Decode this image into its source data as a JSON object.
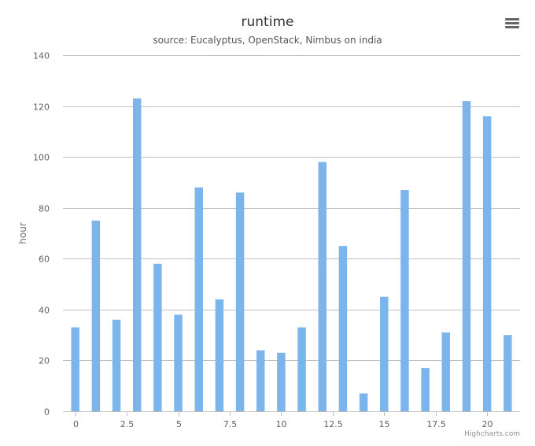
{
  "chart_data": {
    "type": "bar",
    "title": "runtime",
    "subtitle": "source: Eucalyptus, OpenStack, Nimbus on india",
    "xlabel": "",
    "ylabel": "hour",
    "x": [
      0,
      1,
      2,
      3,
      4,
      5,
      6,
      7,
      8,
      9,
      10,
      11,
      12,
      13,
      14,
      15,
      16,
      17,
      18,
      19,
      20,
      21
    ],
    "values": [
      33,
      75,
      36,
      123,
      58,
      38,
      88,
      44,
      86,
      24,
      23,
      33,
      98,
      65,
      7,
      45,
      87,
      17,
      31,
      122,
      116,
      30
    ],
    "xlim": [
      -0.6,
      21.6
    ],
    "ylim": [
      0,
      140
    ],
    "x_ticks": [
      "0",
      "2.5",
      "5",
      "7.5",
      "10",
      "12.5",
      "15",
      "17.5",
      "20"
    ],
    "x_tick_values": [
      0,
      2.5,
      5,
      7.5,
      10,
      12.5,
      15,
      17.5,
      20
    ],
    "y_ticks": [
      "0",
      "20",
      "40",
      "60",
      "80",
      "100",
      "120",
      "140"
    ],
    "y_tick_values": [
      0,
      20,
      40,
      60,
      80,
      100,
      120,
      140
    ],
    "grid": true,
    "legend": "none",
    "bar_color": "#7cb5ec",
    "grid_color": "#c0c0c0"
  },
  "credits": "Highcharts.com",
  "menu_icon": "hamburger-menu-icon"
}
